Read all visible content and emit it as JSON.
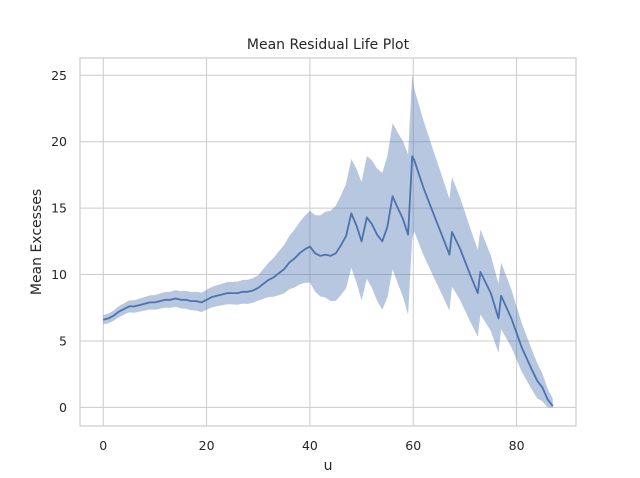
{
  "chart_data": {
    "type": "line",
    "title": "Mean Residual Life Plot",
    "xlabel": "u",
    "ylabel": "Mean Excesses",
    "xlim": [
      -4.5,
      91.5
    ],
    "ylim": [
      -1.4,
      26.3
    ],
    "xticks": [
      0,
      20,
      40,
      60,
      80
    ],
    "yticks": [
      0,
      5,
      10,
      15,
      20,
      25
    ],
    "grid": true,
    "colors": {
      "line": "#4c72b0",
      "band": "#4c72b0"
    },
    "series": [
      {
        "x": [
          0,
          1,
          2,
          3,
          4,
          5,
          6,
          7,
          8,
          9,
          10,
          11,
          12,
          13,
          14,
          15,
          16,
          17,
          18,
          19,
          20,
          21,
          22,
          23,
          24,
          25,
          26,
          27,
          28,
          29,
          30,
          31,
          32,
          33,
          34,
          35,
          36,
          37,
          38,
          39,
          40,
          41,
          42,
          43,
          44,
          45,
          46,
          47,
          48,
          49,
          50,
          51,
          52,
          53,
          54,
          55,
          56,
          57,
          58,
          59,
          59.8,
          60.2,
          62,
          64,
          66,
          67,
          67.5,
          69,
          71,
          72.5,
          73,
          75,
          76.5,
          77,
          79,
          81,
          83,
          84,
          85,
          86,
          87
        ],
        "y": [
          6.6,
          6.7,
          6.9,
          7.2,
          7.4,
          7.6,
          7.6,
          7.7,
          7.8,
          7.9,
          7.9,
          8.0,
          8.1,
          8.1,
          8.2,
          8.1,
          8.1,
          8.0,
          8.0,
          7.9,
          8.1,
          8.3,
          8.4,
          8.5,
          8.6,
          8.6,
          8.6,
          8.7,
          8.7,
          8.8,
          9.0,
          9.3,
          9.6,
          9.8,
          10.1,
          10.4,
          10.9,
          11.2,
          11.6,
          11.9,
          12.1,
          11.6,
          11.4,
          11.5,
          11.4,
          11.6,
          12.2,
          12.9,
          14.6,
          13.7,
          12.5,
          14.3,
          13.8,
          13.0,
          12.5,
          13.6,
          15.9,
          15.0,
          14.2,
          13.0,
          18.9,
          18.6,
          16.5,
          14.5,
          12.5,
          11.5,
          13.2,
          12.0,
          10.0,
          8.6,
          10.2,
          8.6,
          6.7,
          8.4,
          6.7,
          4.5,
          2.8,
          2.0,
          1.5,
          0.6,
          0.1
        ]
      }
    ]
  }
}
